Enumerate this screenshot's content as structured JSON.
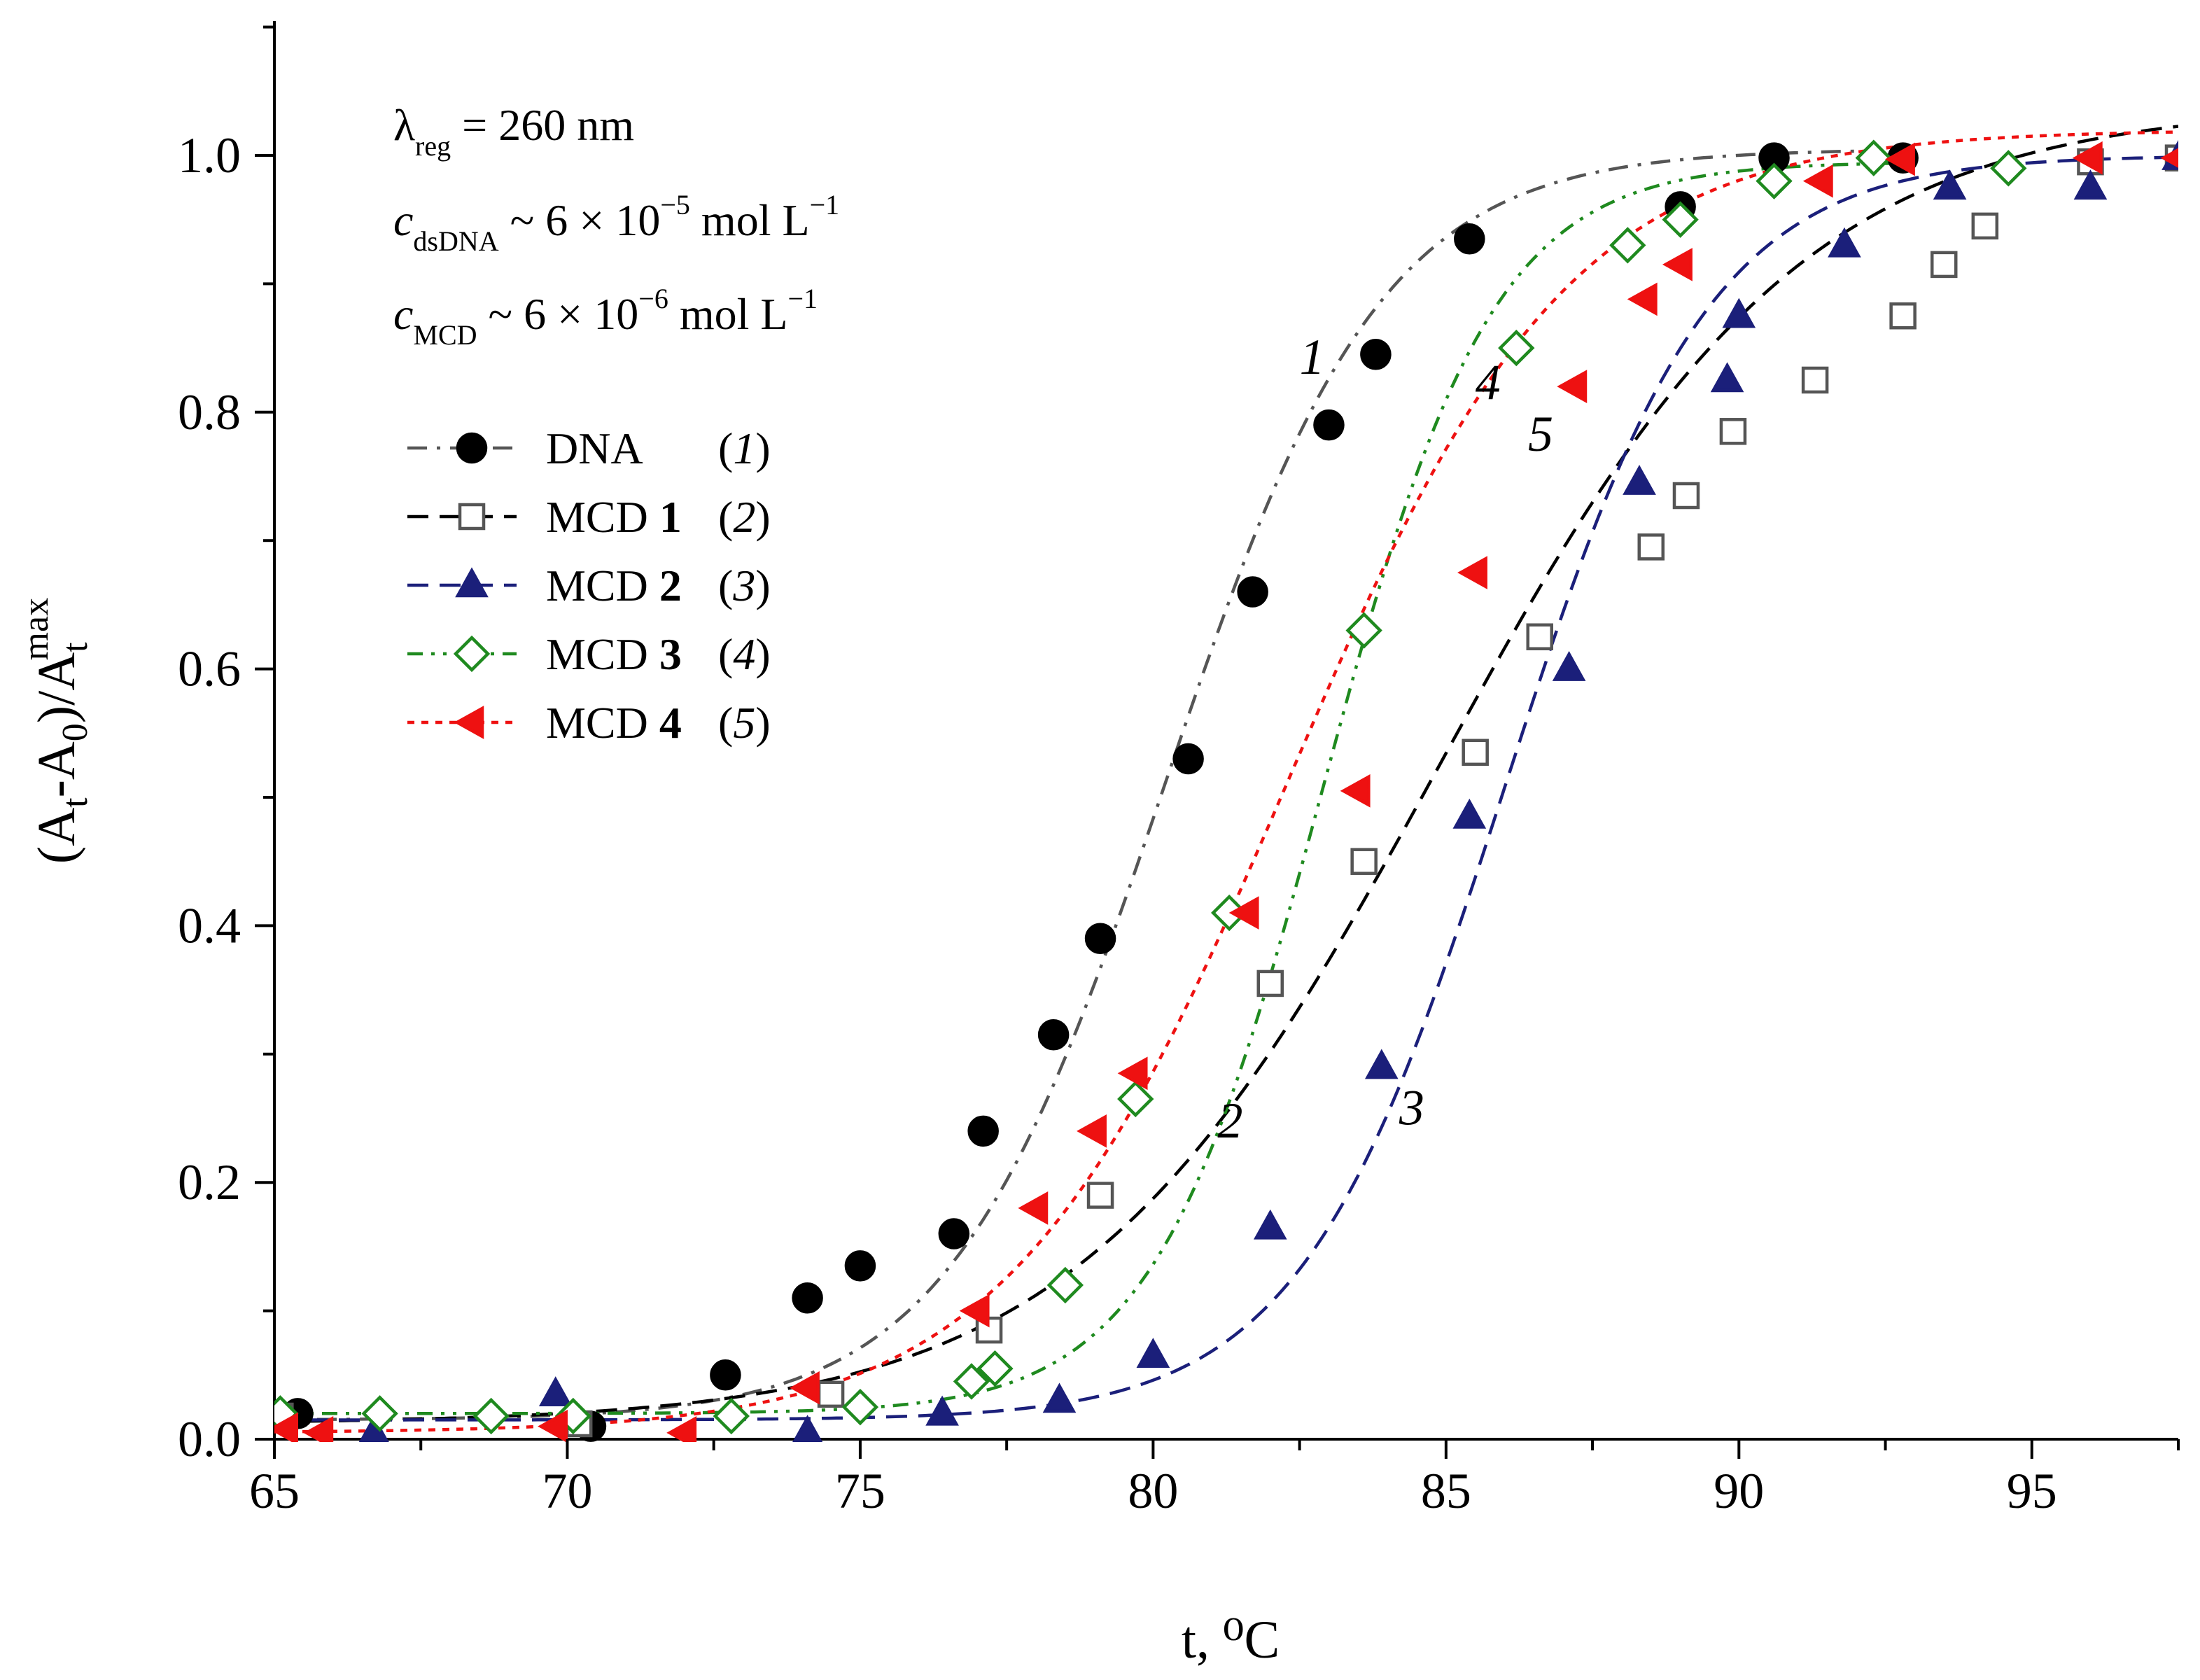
{
  "chart_data": {
    "type": "scatter",
    "title": "",
    "xlabel": "t, ⁰C",
    "ylabel": "(A_t - A_0)/A_t^max",
    "xlim": [
      65,
      97.5
    ],
    "ylim": [
      0,
      1.1
    ],
    "x_ticks": [
      65,
      70,
      75,
      80,
      85,
      90,
      95
    ],
    "y_ticks": [
      0.0,
      0.2,
      0.4,
      0.6,
      0.8,
      1.0
    ],
    "x_tick_labels": [
      "65",
      "70",
      "75",
      "80",
      "85",
      "90",
      "95"
    ],
    "y_tick_labels": [
      "0.0",
      "0.2",
      "0.4",
      "0.6",
      "0.8",
      "1.0"
    ],
    "grid": false,
    "legend_position": "top-left",
    "annotations": {
      "wavelength": {
        "sym": "λ",
        "sub": "reg",
        "rest": " = 260 nm"
      },
      "c_dna": {
        "sym": "c",
        "sub": "dsDNA",
        "mid": " ~ 6 × 10",
        "exp": "−5",
        "unit": " mol L",
        "unit_exp": "−1"
      },
      "c_mcd": {
        "sym": "c",
        "sub": "MCD",
        "mid": " ~ 6 × 10",
        "exp": "−6",
        "unit": " mol L",
        "unit_exp": "−1"
      }
    },
    "series": [
      {
        "name": "DNA",
        "legend_bold": "",
        "legend_num": "1",
        "curve_label": "1",
        "color": "#000000",
        "line_color": "#555555",
        "marker": "circle",
        "filled": true,
        "dash": "dashdot",
        "points": [
          [
            65.4,
            0.02
          ],
          [
            70.4,
            0.01
          ],
          [
            72.7,
            0.05
          ],
          [
            74.1,
            0.11
          ],
          [
            75.0,
            0.135
          ],
          [
            76.6,
            0.16
          ],
          [
            77.1,
            0.24
          ],
          [
            78.3,
            0.315
          ],
          [
            79.1,
            0.39
          ],
          [
            80.6,
            0.53
          ],
          [
            81.7,
            0.66
          ],
          [
            83.0,
            0.79
          ],
          [
            83.8,
            0.845
          ],
          [
            85.4,
            0.935
          ],
          [
            89.0,
            0.96
          ],
          [
            90.6,
            0.998
          ],
          [
            92.8,
            0.998
          ]
        ],
        "fit": {
          "tm": 80.2,
          "w": 1.85,
          "base": 0.015,
          "top": 1.005,
          "xmin": 65,
          "xmax": 92
        }
      },
      {
        "name": "MCD",
        "legend_bold": "1",
        "legend_num": "2",
        "curve_label": "2",
        "color": "#555555",
        "line_color": "#000000",
        "marker": "square",
        "filled": false,
        "dash": "dash",
        "points": [
          [
            65.1,
            0.018
          ],
          [
            70.2,
            0.012
          ],
          [
            74.5,
            0.035
          ],
          [
            77.2,
            0.085
          ],
          [
            79.1,
            0.19
          ],
          [
            82.0,
            0.355
          ],
          [
            83.6,
            0.45
          ],
          [
            85.5,
            0.535
          ],
          [
            86.6,
            0.625
          ],
          [
            88.5,
            0.695
          ],
          [
            89.1,
            0.735
          ],
          [
            89.9,
            0.785
          ],
          [
            91.3,
            0.825
          ],
          [
            92.8,
            0.875
          ],
          [
            93.5,
            0.915
          ],
          [
            94.2,
            0.945
          ],
          [
            96.0,
            0.995
          ],
          [
            97.5,
            0.998
          ]
        ],
        "fit": {
          "tm": 84.9,
          "w": 3.1,
          "base": 0.012,
          "top": 1.04,
          "xmin": 65,
          "xmax": 97.5
        }
      },
      {
        "name": "MCD",
        "legend_bold": "2",
        "legend_num": "3",
        "curve_label": "3",
        "color": "#1b1f7a",
        "line_color": "#1b1f7a",
        "marker": "triangle-up",
        "filled": true,
        "dash": "dash",
        "points": [
          [
            65.1,
            0.018
          ],
          [
            66.7,
            0.005
          ],
          [
            69.8,
            0.035
          ],
          [
            74.1,
            0.005
          ],
          [
            76.4,
            0.02
          ],
          [
            78.4,
            0.03
          ],
          [
            80.0,
            0.065
          ],
          [
            82.0,
            0.165
          ],
          [
            83.9,
            0.29
          ],
          [
            85.4,
            0.485
          ],
          [
            87.1,
            0.6
          ],
          [
            88.3,
            0.745
          ],
          [
            89.8,
            0.825
          ],
          [
            90.0,
            0.875
          ],
          [
            91.8,
            0.93
          ],
          [
            93.6,
            0.975
          ],
          [
            96.0,
            0.975
          ],
          [
            97.5,
            0.998
          ]
        ],
        "fit": {
          "tm": 86.0,
          "w": 1.75,
          "base": 0.015,
          "top": 1.0,
          "xmin": 65,
          "xmax": 97.5
        }
      },
      {
        "name": "MCD",
        "legend_bold": "3",
        "legend_num": "4",
        "curve_label": "4",
        "color": "#1f8a1f",
        "line_color": "#1f8a1f",
        "marker": "diamond",
        "filled": false,
        "dash": "dashdotdot",
        "points": [
          [
            65.1,
            0.02
          ],
          [
            66.8,
            0.02
          ],
          [
            68.7,
            0.018
          ],
          [
            70.1,
            0.018
          ],
          [
            72.8,
            0.018
          ],
          [
            75.0,
            0.025
          ],
          [
            76.9,
            0.045
          ],
          [
            77.3,
            0.055
          ],
          [
            78.5,
            0.12
          ],
          [
            79.7,
            0.265
          ],
          [
            81.3,
            0.41
          ],
          [
            83.6,
            0.63
          ],
          [
            86.2,
            0.85
          ],
          [
            88.1,
            0.93
          ],
          [
            89.0,
            0.95
          ],
          [
            90.6,
            0.98
          ],
          [
            92.3,
            0.998
          ],
          [
            94.6,
            0.99
          ]
        ],
        "fit": {
          "tm": 82.9,
          "w": 1.45,
          "base": 0.02,
          "top": 0.995,
          "xmin": 65,
          "xmax": 93
        }
      },
      {
        "name": "MCD",
        "legend_bold": "4",
        "legend_num": "5",
        "curve_label": "5",
        "color": "#ee1111",
        "line_color": "#ee1111",
        "marker": "triangle-left",
        "filled": true,
        "dash": "dot",
        "points": [
          [
            65.2,
            0.008
          ],
          [
            65.8,
            0.005
          ],
          [
            69.8,
            0.01
          ],
          [
            72.0,
            0.005
          ],
          [
            74.1,
            0.04
          ],
          [
            77.0,
            0.1
          ],
          [
            78.0,
            0.18
          ],
          [
            79.0,
            0.24
          ],
          [
            79.7,
            0.285
          ],
          [
            81.6,
            0.41
          ],
          [
            83.5,
            0.505
          ],
          [
            85.5,
            0.675
          ],
          [
            87.2,
            0.82
          ],
          [
            88.4,
            0.888
          ],
          [
            89.0,
            0.915
          ],
          [
            91.4,
            0.98
          ],
          [
            92.8,
            0.997
          ],
          [
            96.0,
            0.998
          ],
          [
            97.5,
            0.998
          ]
        ],
        "fit": {
          "tm": 82.3,
          "w": 2.4,
          "base": 0.005,
          "top": 1.02,
          "xmin": 65,
          "xmax": 97.5
        }
      }
    ]
  }
}
